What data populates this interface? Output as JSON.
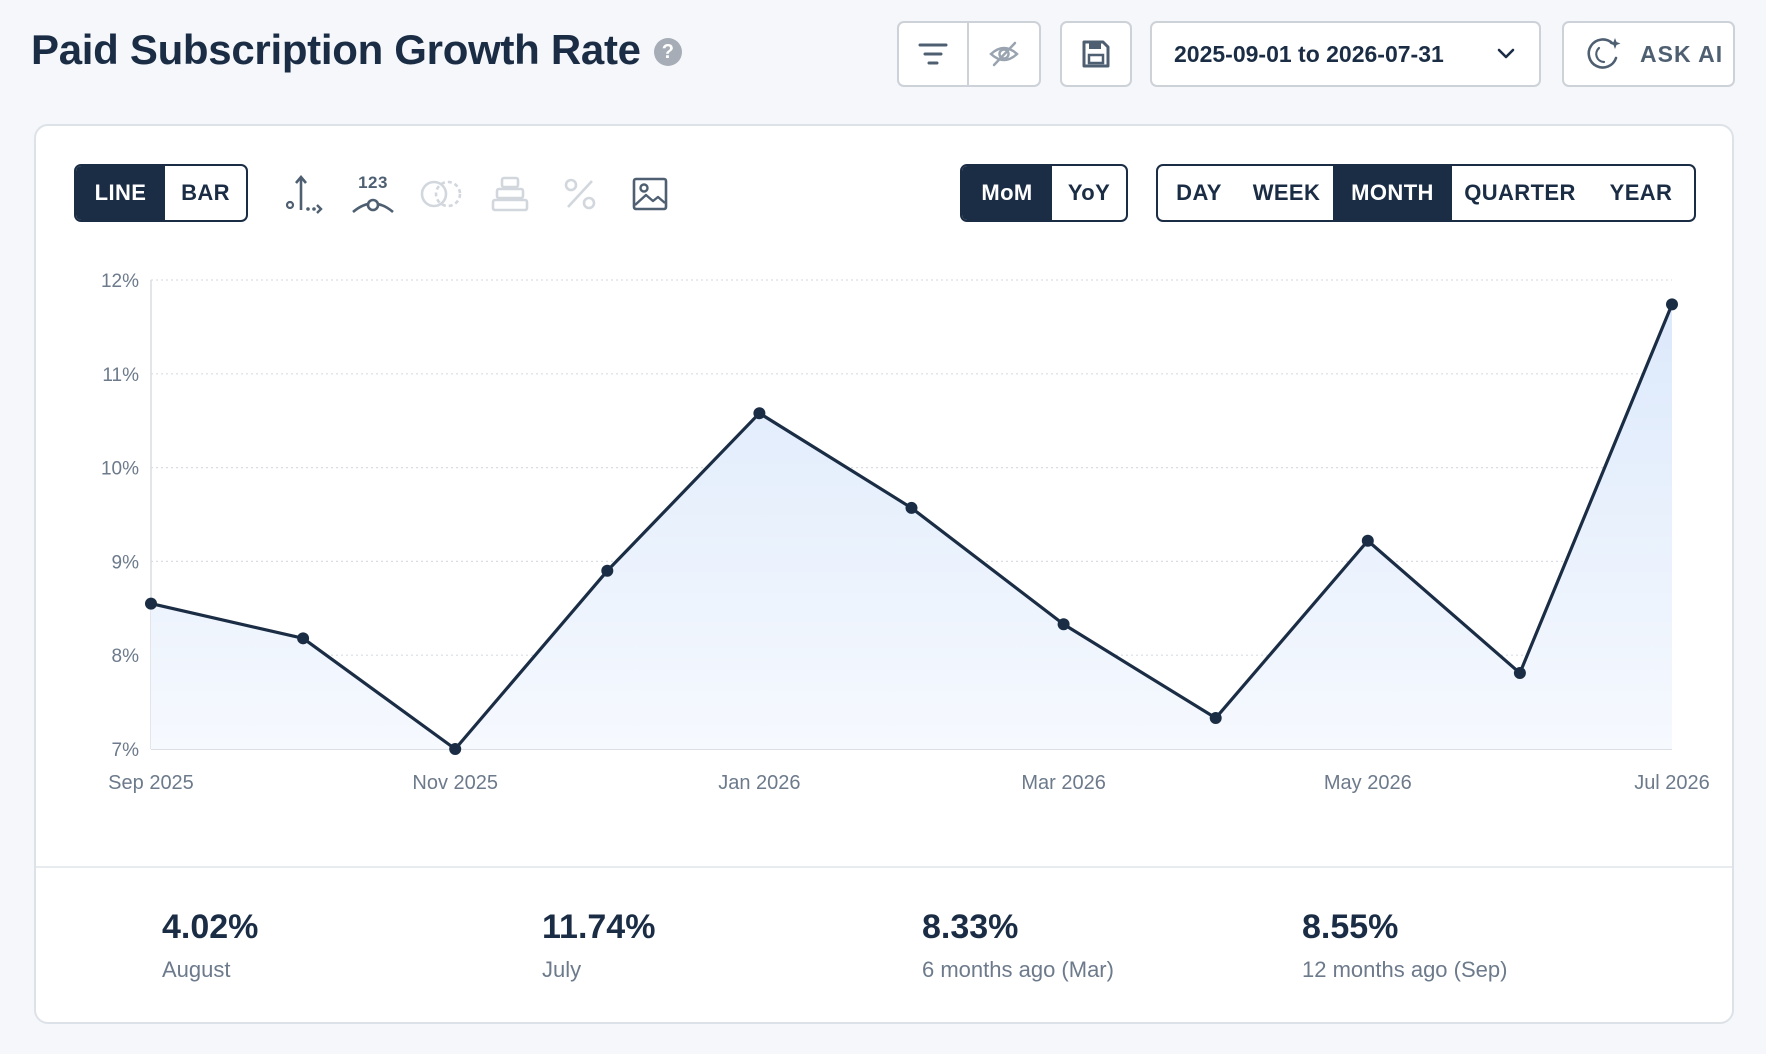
{
  "header": {
    "title": "Paid Subscription Growth Rate",
    "help_glyph": "?",
    "date_range": "2025-09-01 to 2026-07-31",
    "ask_ai_label": "ASK AI"
  },
  "toolbar": {
    "chart_types": [
      "LINE",
      "BAR"
    ],
    "active_chart_type": "LINE",
    "data_labels_icon_text": "123",
    "comparison": [
      "MoM",
      "YoY"
    ],
    "active_comparison": "MoM",
    "granularity": [
      "DAY",
      "WEEK",
      "MONTH",
      "QUARTER",
      "YEAR"
    ],
    "active_granularity": "MONTH"
  },
  "colors": {
    "primary": "#1b2d45",
    "fill_top": "#dce9fb",
    "grid": "#d9dde3",
    "axis_text": "#6c7a8b"
  },
  "chart_data": {
    "type": "area",
    "x": [
      "2025-09",
      "2025-10",
      "2025-11",
      "2025-12",
      "2026-01",
      "2026-02",
      "2026-03",
      "2026-04",
      "2026-05",
      "2026-06",
      "2026-07"
    ],
    "x_tick_labels": [
      "Sep 2025",
      "Nov 2025",
      "Jan 2026",
      "Mar 2026",
      "May 2026",
      "Jul 2026"
    ],
    "x_tick_indices": [
      0,
      2,
      4,
      6,
      8,
      10
    ],
    "y_tick_labels": [
      "12%",
      "11%",
      "10%",
      "9%",
      "8%",
      "7%"
    ],
    "y_ticks": [
      12,
      11,
      10,
      9,
      8,
      7
    ],
    "ylim": [
      7,
      12
    ],
    "series": [
      {
        "values": [
          8.55,
          8.18,
          7.0,
          8.9,
          10.58,
          9.57,
          8.33,
          7.33,
          9.22,
          7.81,
          11.74
        ]
      }
    ],
    "grid": true,
    "legend": "none"
  },
  "stats": [
    {
      "value": "4.02%",
      "label": "August"
    },
    {
      "value": "11.74%",
      "label": "July"
    },
    {
      "value": "8.33%",
      "label": "6 months ago (Mar)"
    },
    {
      "value": "8.55%",
      "label": "12 months ago (Sep)"
    }
  ]
}
